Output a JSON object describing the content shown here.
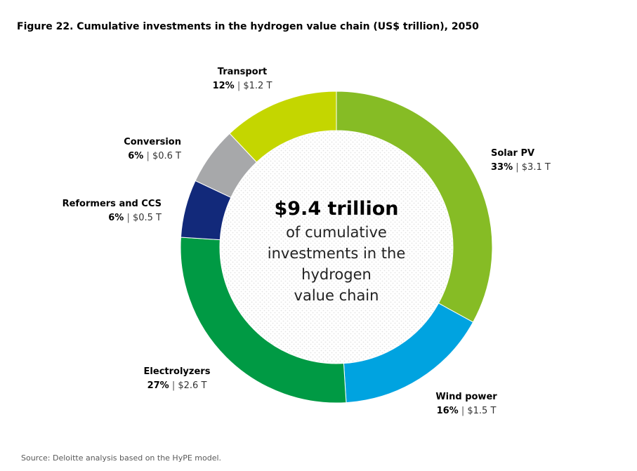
{
  "title": "Figure 22.  Cumulative investments in the hydrogen value chain (US$ trillion), 2050",
  "source": "Source: Deloitte analysis based on the HyPE model.",
  "center": {
    "total": "$9.4 trillion",
    "lines": [
      "of cumulative",
      "investments in the",
      "hydrogen",
      "value chain"
    ]
  },
  "chart_data": {
    "type": "pie",
    "donut": true,
    "unit": "US$ trillion",
    "slices": [
      {
        "name": "Solar PV",
        "percent": 33,
        "value": 3.1,
        "pct_label": "33%",
        "value_label": "$3.1 T",
        "color": "#86BC25"
      },
      {
        "name": "Wind power",
        "percent": 16,
        "value": 1.5,
        "pct_label": "16%",
        "value_label": "$1.5 T",
        "color": "#00A3E0"
      },
      {
        "name": "Electrolyzers",
        "percent": 27,
        "value": 2.6,
        "pct_label": "27%",
        "value_label": "$2.6 T",
        "color": "#009A44"
      },
      {
        "name": "Reformers and CCS",
        "percent": 6,
        "value": 0.5,
        "pct_label": "6%",
        "value_label": "$0.5 T",
        "color": "#12297A"
      },
      {
        "name": "Conversion",
        "percent": 6,
        "value": 0.6,
        "pct_label": "6%",
        "value_label": "$0.6 T",
        "color": "#A7A8AA"
      },
      {
        "name": "Transport",
        "percent": 12,
        "value": 1.2,
        "pct_label": "12%",
        "value_label": "$1.2 T",
        "color": "#C4D600"
      }
    ],
    "separator": "|"
  }
}
